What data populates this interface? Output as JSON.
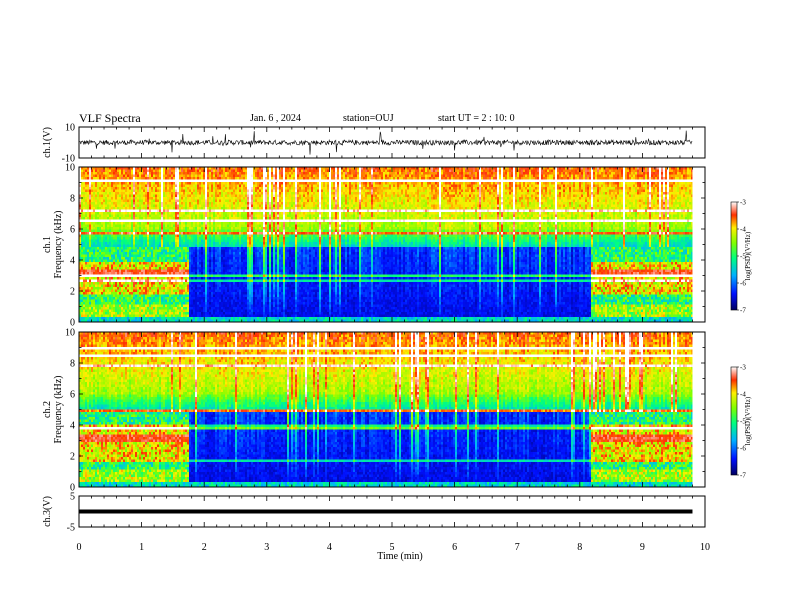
{
  "header": {
    "title": "VLF Spectra",
    "date": "Jan. 6 , 2024",
    "station": "station=OUJ",
    "start": "start UT =  2 : 10: 0"
  },
  "chart_data": [
    {
      "type": "line",
      "name": "ch1-waveform",
      "ylabel": "ch.1(V)",
      "ylim": [
        -10,
        10
      ],
      "yticks": [
        "10",
        "-10"
      ],
      "baseline": 0,
      "color": "#000000"
    },
    {
      "type": "heatmap",
      "name": "ch1-spectrogram",
      "ylabel": "ch.1\nFrequency (kHz)",
      "ylabel_line1": "ch.1",
      "ylabel_line2": "Frequency (kHz)",
      "ylim": [
        0,
        10
      ],
      "yticks": [
        "0",
        "2",
        "4",
        "6",
        "8",
        "10"
      ],
      "colorbar": {
        "ticks": [
          "-3",
          "-4",
          "-5",
          "-6",
          "-7"
        ],
        "label": "log(PSD)(V²/Hz)",
        "range": [
          -7,
          -3
        ]
      },
      "segments": [
        {
          "from": 0,
          "to": 1.75,
          "state": "active-low-band"
        },
        {
          "from": 1.75,
          "to": 8.15,
          "state": "quiet"
        },
        {
          "from": 8.15,
          "to": 9.8,
          "state": "active-low-band"
        }
      ]
    },
    {
      "type": "heatmap",
      "name": "ch2-spectrogram",
      "ylabel": "ch.2\nFrequency (kHz)",
      "ylabel_line1": "ch.2",
      "ylabel_line2": "Frequency (kHz)",
      "ylim": [
        0,
        10
      ],
      "yticks": [
        "0",
        "2",
        "4",
        "6",
        "8",
        "10"
      ],
      "colorbar": {
        "ticks": [
          "-3",
          "-4",
          "-5",
          "-6",
          "-7"
        ],
        "label": "log(PSD)(V²/Hz)",
        "range": [
          -7,
          -3
        ]
      },
      "segments": [
        {
          "from": 0,
          "to": 1.75,
          "state": "active-low-band"
        },
        {
          "from": 1.75,
          "to": 8.15,
          "state": "quiet"
        },
        {
          "from": 8.15,
          "to": 9.8,
          "state": "active-low-band"
        }
      ]
    },
    {
      "type": "line",
      "name": "ch3-level",
      "ylabel": "ch.3(V)",
      "ylim": [
        -5,
        5
      ],
      "yticks": [
        "5",
        "-5"
      ],
      "level": 0,
      "color": "#000000"
    }
  ],
  "xaxis": {
    "label": "Time (min)",
    "range": [
      0,
      10
    ],
    "ticks": [
      "0",
      "1",
      "2",
      "3",
      "4",
      "5",
      "6",
      "7",
      "8",
      "9",
      "10"
    ],
    "data_end": 9.8
  }
}
